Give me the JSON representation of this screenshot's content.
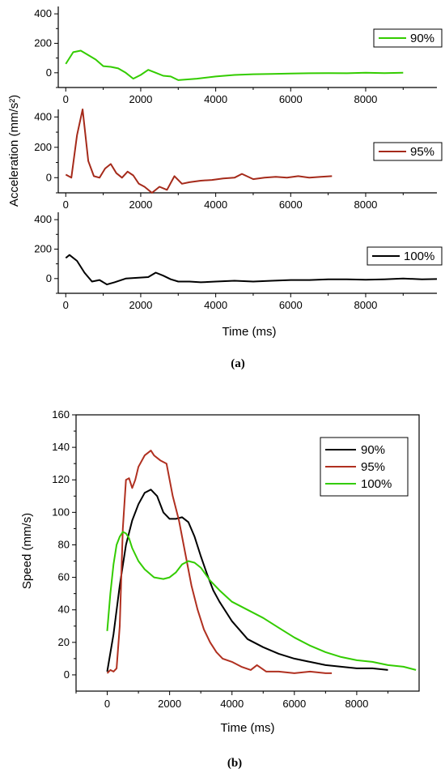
{
  "chart_data": [
    {
      "type": "line",
      "panel": "a",
      "caption": "(a)",
      "ylabel": "Acceleration (mm/s²)",
      "xlabel": "Time (ms)",
      "xlim": [
        -200,
        9900
      ],
      "xticks": [
        0,
        2000,
        4000,
        6000,
        8000
      ],
      "xtick_labels": [
        "0",
        "2000",
        "4000",
        "6000",
        "8000"
      ],
      "ylim": [
        -100,
        450
      ],
      "yticks": [
        0,
        200,
        400
      ],
      "ytick_labels": [
        "0",
        "200",
        "400"
      ],
      "grid": false,
      "subplots": [
        {
          "legend": "90%",
          "legend_position": "right",
          "color": "#33cc00",
          "x": [
            0,
            200,
            400,
            600,
            800,
            1000,
            1200,
            1400,
            1600,
            1800,
            2000,
            2200,
            2400,
            2600,
            2800,
            3000,
            3500,
            4000,
            4500,
            5000,
            5500,
            6000,
            6500,
            7000,
            7500,
            8000,
            8500,
            9000
          ],
          "y": [
            60,
            140,
            150,
            120,
            90,
            45,
            40,
            30,
            0,
            -40,
            -15,
            20,
            0,
            -20,
            -25,
            -50,
            -40,
            -25,
            -15,
            -10,
            -8,
            -5,
            -3,
            -2,
            -3,
            0,
            -2,
            0
          ]
        },
        {
          "legend": "95%",
          "legend_position": "right",
          "color": "#a52a1a",
          "x": [
            0,
            150,
            300,
            450,
            600,
            750,
            900,
            1050,
            1200,
            1350,
            1500,
            1650,
            1800,
            1950,
            2100,
            2300,
            2500,
            2700,
            2900,
            3100,
            3300,
            3600,
            3900,
            4200,
            4500,
            4700,
            5000,
            5300,
            5600,
            5900,
            6200,
            6500,
            6800,
            7100
          ],
          "y": [
            20,
            0,
            280,
            450,
            110,
            10,
            0,
            60,
            90,
            30,
            0,
            40,
            15,
            -40,
            -60,
            -100,
            -60,
            -80,
            10,
            -40,
            -30,
            -20,
            -15,
            -5,
            0,
            25,
            -10,
            0,
            5,
            0,
            10,
            0,
            5,
            10
          ]
        },
        {
          "legend": "100%",
          "legend_position": "right",
          "color": "#000000",
          "x": [
            0,
            100,
            300,
            500,
            700,
            900,
            1100,
            1300,
            1600,
            1900,
            2200,
            2400,
            2600,
            2800,
            3000,
            3300,
            3600,
            4000,
            4500,
            5000,
            5500,
            6000,
            6500,
            7000,
            7500,
            8000,
            8500,
            9000,
            9500,
            9900
          ],
          "y": [
            140,
            160,
            120,
            40,
            -20,
            -10,
            -40,
            -25,
            0,
            5,
            10,
            40,
            20,
            -5,
            -20,
            -20,
            -25,
            -20,
            -15,
            -20,
            -15,
            -10,
            -10,
            -5,
            -5,
            -8,
            -5,
            0,
            -5,
            -3
          ]
        }
      ]
    },
    {
      "type": "line",
      "panel": "b",
      "caption": "(b)",
      "ylabel": "Speed (mm/s)",
      "xlabel": "Time (ms)",
      "xlim": [
        -1000,
        10000
      ],
      "xticks": [
        0,
        2000,
        4000,
        6000,
        8000
      ],
      "xtick_labels": [
        "0",
        "2000",
        "4000",
        "6000",
        "8000"
      ],
      "ylim": [
        -10,
        160
      ],
      "yticks": [
        0,
        20,
        40,
        60,
        80,
        100,
        120,
        140,
        160
      ],
      "ytick_labels": [
        "0",
        "20",
        "40",
        "60",
        "80",
        "100",
        "120",
        "140",
        "160"
      ],
      "grid": false,
      "legend_position": "top-right",
      "series": [
        {
          "name": "90%",
          "color": "#000000",
          "x": [
            0,
            200,
            400,
            600,
            800,
            1000,
            1200,
            1400,
            1600,
            1800,
            2000,
            2200,
            2400,
            2600,
            2800,
            3000,
            3200,
            3400,
            3600,
            4000,
            4500,
            5000,
            5500,
            6000,
            6500,
            7000,
            7500,
            8000,
            8500,
            9000
          ],
          "y": [
            2,
            25,
            55,
            80,
            95,
            105,
            112,
            114,
            110,
            100,
            96,
            96,
            97,
            94,
            85,
            73,
            62,
            52,
            45,
            33,
            22,
            17,
            13,
            10,
            8,
            6,
            5,
            4,
            4,
            3
          ]
        },
        {
          "name": "95%",
          "color": "#b03020",
          "x": [
            0,
            100,
            200,
            300,
            400,
            500,
            600,
            700,
            800,
            900,
            1000,
            1200,
            1400,
            1500,
            1700,
            1900,
            2100,
            2300,
            2500,
            2700,
            2900,
            3100,
            3300,
            3500,
            3700,
            4000,
            4300,
            4600,
            4800,
            5100,
            5500,
            6000,
            6500,
            7000,
            7200
          ],
          "y": [
            1,
            3,
            2,
            4,
            30,
            90,
            120,
            121,
            115,
            120,
            128,
            135,
            138,
            135,
            132,
            130,
            110,
            95,
            75,
            55,
            40,
            28,
            20,
            14,
            10,
            8,
            5,
            3,
            6,
            2,
            2,
            1,
            2,
            1,
            1
          ]
        },
        {
          "name": "100%",
          "color": "#33cc00",
          "x": [
            0,
            100,
            200,
            300,
            400,
            500,
            600,
            700,
            800,
            1000,
            1200,
            1500,
            1800,
            2000,
            2200,
            2400,
            2600,
            2800,
            3000,
            3300,
            3600,
            4000,
            4500,
            5000,
            5500,
            6000,
            6500,
            7000,
            7500,
            8000,
            8500,
            9000,
            9500,
            9900
          ],
          "y": [
            27,
            50,
            68,
            80,
            85,
            88,
            87,
            84,
            78,
            70,
            65,
            60,
            59,
            60,
            63,
            68,
            70,
            69,
            66,
            58,
            52,
            45,
            40,
            35,
            29,
            23,
            18,
            14,
            11,
            9,
            8,
            6,
            5,
            3
          ]
        }
      ]
    }
  ]
}
